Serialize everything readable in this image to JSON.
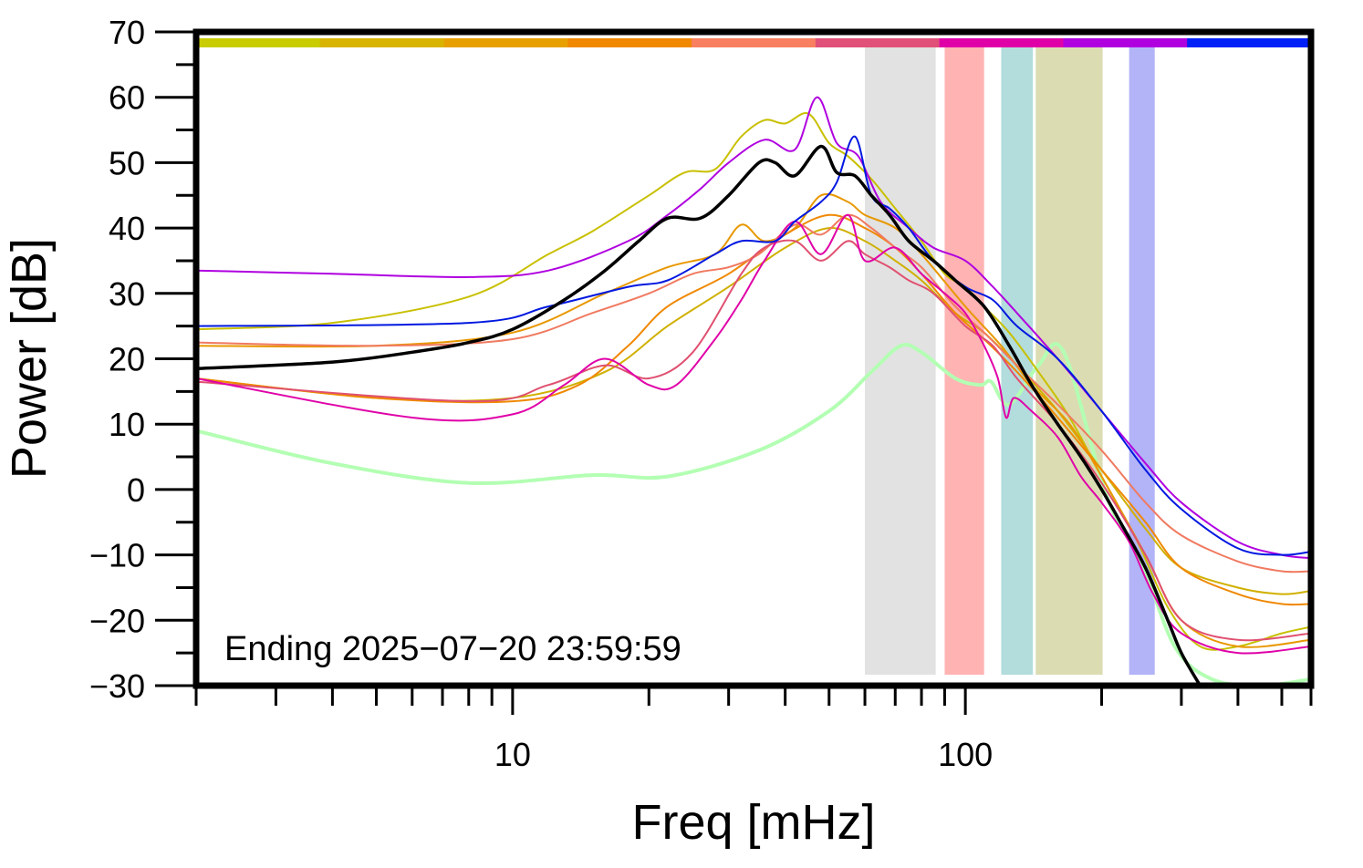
{
  "chart_data": {
    "type": "line",
    "xlabel": "Freq [mHz]",
    "ylabel": "Power [dB]",
    "xscale": "log",
    "xlim": [
      2,
      580
    ],
    "ylim": [
      -30,
      70
    ],
    "xticks_major": [
      10,
      100
    ],
    "xticks_minor": [
      2,
      3,
      4,
      5,
      6,
      7,
      8,
      9,
      20,
      30,
      40,
      50,
      60,
      70,
      80,
      90,
      200,
      300,
      400,
      500
    ],
    "yticks": [
      -30,
      -20,
      -10,
      0,
      10,
      20,
      30,
      40,
      50,
      60,
      70
    ],
    "grid": false,
    "annotation": "Ending 2025−07−20 23:59:59",
    "color_bar": [
      "#c8cc00",
      "#d8b400",
      "#e8a000",
      "#f08800",
      "#f88060",
      "#e05078",
      "#e000a8",
      "#b000e0",
      "#0020f8"
    ],
    "bands": [
      {
        "x0": 60,
        "x1": 86,
        "color": "#e2e2e2"
      },
      {
        "x0": 90,
        "x1": 110,
        "color": "#ffb3b3"
      },
      {
        "x0": 120,
        "x1": 141,
        "color": "#b3dcdc"
      },
      {
        "x0": 143,
        "x1": 201,
        "color": "#dcdcb3"
      },
      {
        "x0": 230,
        "x1": 262,
        "color": "#b3b3f8"
      }
    ],
    "series": [
      {
        "color": "#b3ffb3",
        "width": 4,
        "values": [
          [
            2,
            9
          ],
          [
            4,
            4
          ],
          [
            8,
            1
          ],
          [
            15,
            2.2
          ],
          [
            22,
            2
          ],
          [
            35,
            6
          ],
          [
            50,
            12
          ],
          [
            62,
            18
          ],
          [
            72,
            22
          ],
          [
            80,
            21
          ],
          [
            95,
            17
          ],
          [
            108,
            16
          ],
          [
            114,
            16.5
          ],
          [
            125,
            13
          ],
          [
            145,
            19
          ],
          [
            165,
            21
          ],
          [
            205,
            -1
          ],
          [
            245,
            -11
          ],
          [
            290,
            -24
          ],
          [
            350,
            -29
          ],
          [
            450,
            -30
          ],
          [
            580,
            -29
          ]
        ]
      },
      {
        "color": "#c8c000",
        "width": 2,
        "values": [
          [
            2,
            24.5
          ],
          [
            4,
            25.5
          ],
          [
            8,
            29.5
          ],
          [
            12,
            36
          ],
          [
            15,
            39.5
          ],
          [
            20,
            45
          ],
          [
            24,
            48.5
          ],
          [
            28,
            49
          ],
          [
            32,
            54
          ],
          [
            36,
            56.5
          ],
          [
            40,
            56
          ],
          [
            45,
            57.5
          ],
          [
            50,
            53
          ],
          [
            55,
            51
          ],
          [
            62,
            47.5
          ],
          [
            70,
            43
          ],
          [
            80,
            38
          ],
          [
            90,
            33
          ],
          [
            100,
            31
          ],
          [
            110,
            28
          ],
          [
            125,
            24
          ],
          [
            145,
            18
          ],
          [
            170,
            11
          ],
          [
            200,
            2
          ],
          [
            240,
            -8
          ],
          [
            280,
            -18
          ],
          [
            330,
            -24
          ],
          [
            400,
            -24
          ],
          [
            500,
            -22
          ],
          [
            580,
            -21
          ]
        ]
      },
      {
        "color": "#d0b000",
        "width": 2,
        "values": [
          [
            2,
            17
          ],
          [
            5,
            14
          ],
          [
            10,
            14
          ],
          [
            16,
            18
          ],
          [
            22,
            25
          ],
          [
            30,
            31
          ],
          [
            40,
            37
          ],
          [
            50,
            40
          ],
          [
            60,
            38
          ],
          [
            70,
            35
          ],
          [
            80,
            32
          ],
          [
            95,
            27
          ],
          [
            110,
            24
          ],
          [
            130,
            19
          ],
          [
            160,
            12
          ],
          [
            200,
            3
          ],
          [
            250,
            -6
          ],
          [
            300,
            -12
          ],
          [
            400,
            -15
          ],
          [
            500,
            -16
          ],
          [
            580,
            -15.5
          ]
        ]
      },
      {
        "color": "#e89800",
        "width": 2,
        "values": [
          [
            2,
            22
          ],
          [
            5,
            22
          ],
          [
            10,
            24
          ],
          [
            16,
            30
          ],
          [
            22,
            34
          ],
          [
            28,
            36
          ],
          [
            32,
            40.5
          ],
          [
            36,
            38
          ],
          [
            42,
            40
          ],
          [
            48,
            45
          ],
          [
            55,
            44
          ],
          [
            60,
            42
          ],
          [
            70,
            40
          ],
          [
            80,
            36
          ],
          [
            100,
            28
          ],
          [
            120,
            22
          ],
          [
            140,
            16
          ],
          [
            170,
            10
          ],
          [
            200,
            2
          ],
          [
            250,
            -10
          ],
          [
            300,
            -20
          ],
          [
            400,
            -24
          ],
          [
            580,
            -23
          ]
        ]
      },
      {
        "color": "#f08800",
        "width": 2,
        "values": [
          [
            2,
            17
          ],
          [
            5,
            14
          ],
          [
            10,
            13.5
          ],
          [
            14,
            16
          ],
          [
            18,
            22
          ],
          [
            22,
            28
          ],
          [
            30,
            33
          ],
          [
            40,
            39
          ],
          [
            50,
            42
          ],
          [
            60,
            40
          ],
          [
            70,
            37
          ],
          [
            80,
            33
          ],
          [
            95,
            27
          ],
          [
            110,
            23
          ],
          [
            130,
            18
          ],
          [
            160,
            11
          ],
          [
            200,
            3
          ],
          [
            250,
            -5
          ],
          [
            300,
            -12
          ],
          [
            400,
            -16
          ],
          [
            500,
            -17.5
          ],
          [
            580,
            -17.5
          ]
        ]
      },
      {
        "color": "#f07a60",
        "width": 2,
        "values": [
          [
            2,
            22.5
          ],
          [
            5,
            22
          ],
          [
            10,
            23
          ],
          [
            15,
            27
          ],
          [
            20,
            30
          ],
          [
            25,
            33
          ],
          [
            30,
            34
          ],
          [
            35,
            36
          ],
          [
            42,
            40.5
          ],
          [
            48,
            39
          ],
          [
            55,
            42
          ],
          [
            62,
            40
          ],
          [
            70,
            37
          ],
          [
            80,
            34
          ],
          [
            95,
            28
          ],
          [
            110,
            24
          ],
          [
            130,
            19
          ],
          [
            160,
            13
          ],
          [
            200,
            6
          ],
          [
            250,
            -2
          ],
          [
            300,
            -7
          ],
          [
            400,
            -11
          ],
          [
            500,
            -12.5
          ],
          [
            580,
            -12.5
          ]
        ]
      },
      {
        "color": "#e05070",
        "width": 2,
        "values": [
          [
            2,
            16.5
          ],
          [
            8,
            13.5
          ],
          [
            12,
            16
          ],
          [
            16,
            19
          ],
          [
            20,
            17
          ],
          [
            25,
            21
          ],
          [
            32,
            33
          ],
          [
            36,
            37
          ],
          [
            42,
            38
          ],
          [
            48,
            35
          ],
          [
            55,
            38
          ],
          [
            60,
            36
          ],
          [
            68,
            34
          ],
          [
            75,
            32
          ],
          [
            85,
            30
          ],
          [
            100,
            25
          ],
          [
            115,
            22
          ],
          [
            130,
            17
          ],
          [
            160,
            10
          ],
          [
            200,
            1
          ],
          [
            250,
            -10
          ],
          [
            300,
            -20
          ],
          [
            400,
            -23
          ],
          [
            580,
            -22
          ]
        ]
      },
      {
        "color": "#e000a8",
        "width": 2,
        "values": [
          [
            2,
            17
          ],
          [
            6,
            11
          ],
          [
            10,
            11.5
          ],
          [
            13,
            16
          ],
          [
            16,
            20
          ],
          [
            20,
            16
          ],
          [
            23,
            16
          ],
          [
            28,
            23
          ],
          [
            32,
            29
          ],
          [
            36,
            35
          ],
          [
            42,
            41
          ],
          [
            48,
            36
          ],
          [
            55,
            42
          ],
          [
            60,
            35
          ],
          [
            70,
            37
          ],
          [
            80,
            33
          ],
          [
            90,
            30
          ],
          [
            100,
            27
          ],
          [
            110,
            22
          ],
          [
            118,
            17
          ],
          [
            123,
            11
          ],
          [
            128,
            14
          ],
          [
            140,
            12
          ],
          [
            160,
            8
          ],
          [
            180,
            2
          ],
          [
            200,
            -2
          ],
          [
            230,
            -8
          ],
          [
            260,
            -16
          ],
          [
            300,
            -22
          ],
          [
            400,
            -25
          ],
          [
            580,
            -24
          ]
        ]
      },
      {
        "color": "#b000e0",
        "width": 2,
        "values": [
          [
            2,
            33.5
          ],
          [
            4,
            33
          ],
          [
            8,
            32.5
          ],
          [
            12,
            33.5
          ],
          [
            18,
            38
          ],
          [
            22,
            42
          ],
          [
            26,
            46
          ],
          [
            30,
            50
          ],
          [
            36,
            53.5
          ],
          [
            42,
            52
          ],
          [
            47,
            60
          ],
          [
            52,
            53
          ],
          [
            58,
            51
          ],
          [
            65,
            44
          ],
          [
            75,
            40
          ],
          [
            85,
            37
          ],
          [
            100,
            35
          ],
          [
            115,
            31
          ],
          [
            130,
            27
          ],
          [
            160,
            20
          ],
          [
            200,
            12
          ],
          [
            250,
            4
          ],
          [
            300,
            -2
          ],
          [
            400,
            -8
          ],
          [
            500,
            -10
          ],
          [
            580,
            -10.5
          ]
        ]
      },
      {
        "color": "#0018e0",
        "width": 2,
        "values": [
          [
            2,
            25
          ],
          [
            8,
            25.5
          ],
          [
            12,
            28
          ],
          [
            18,
            31
          ],
          [
            22,
            32
          ],
          [
            28,
            36
          ],
          [
            32,
            38
          ],
          [
            38,
            38
          ],
          [
            42,
            41
          ],
          [
            48,
            44
          ],
          [
            52,
            47
          ],
          [
            57,
            54
          ],
          [
            62,
            45
          ],
          [
            68,
            43
          ],
          [
            75,
            40
          ],
          [
            85,
            35
          ],
          [
            100,
            31
          ],
          [
            115,
            29
          ],
          [
            130,
            25
          ],
          [
            160,
            20
          ],
          [
            200,
            12
          ],
          [
            250,
            3
          ],
          [
            300,
            -3
          ],
          [
            400,
            -9
          ],
          [
            500,
            -10
          ],
          [
            580,
            -9.5
          ]
        ]
      },
      {
        "color": "#000000",
        "width": 3.5,
        "values": [
          [
            2,
            18.5
          ],
          [
            4,
            19.5
          ],
          [
            6,
            21
          ],
          [
            8,
            22.5
          ],
          [
            10,
            24.5
          ],
          [
            13,
            29
          ],
          [
            16,
            33.5
          ],
          [
            19,
            38
          ],
          [
            22,
            41.5
          ],
          [
            26,
            41.5
          ],
          [
            30,
            45
          ],
          [
            35,
            50
          ],
          [
            38,
            50
          ],
          [
            42,
            48
          ],
          [
            48,
            52.5
          ],
          [
            52,
            48.5
          ],
          [
            57,
            48
          ],
          [
            62,
            45
          ],
          [
            68,
            42
          ],
          [
            75,
            38
          ],
          [
            85,
            35
          ],
          [
            95,
            32
          ],
          [
            110,
            28
          ],
          [
            125,
            22
          ],
          [
            140,
            16
          ],
          [
            160,
            10
          ],
          [
            180,
            5
          ],
          [
            200,
            0
          ],
          [
            220,
            -5
          ],
          [
            250,
            -12
          ],
          [
            280,
            -20
          ],
          [
            300,
            -25
          ],
          [
            330,
            -30
          ]
        ]
      }
    ]
  }
}
